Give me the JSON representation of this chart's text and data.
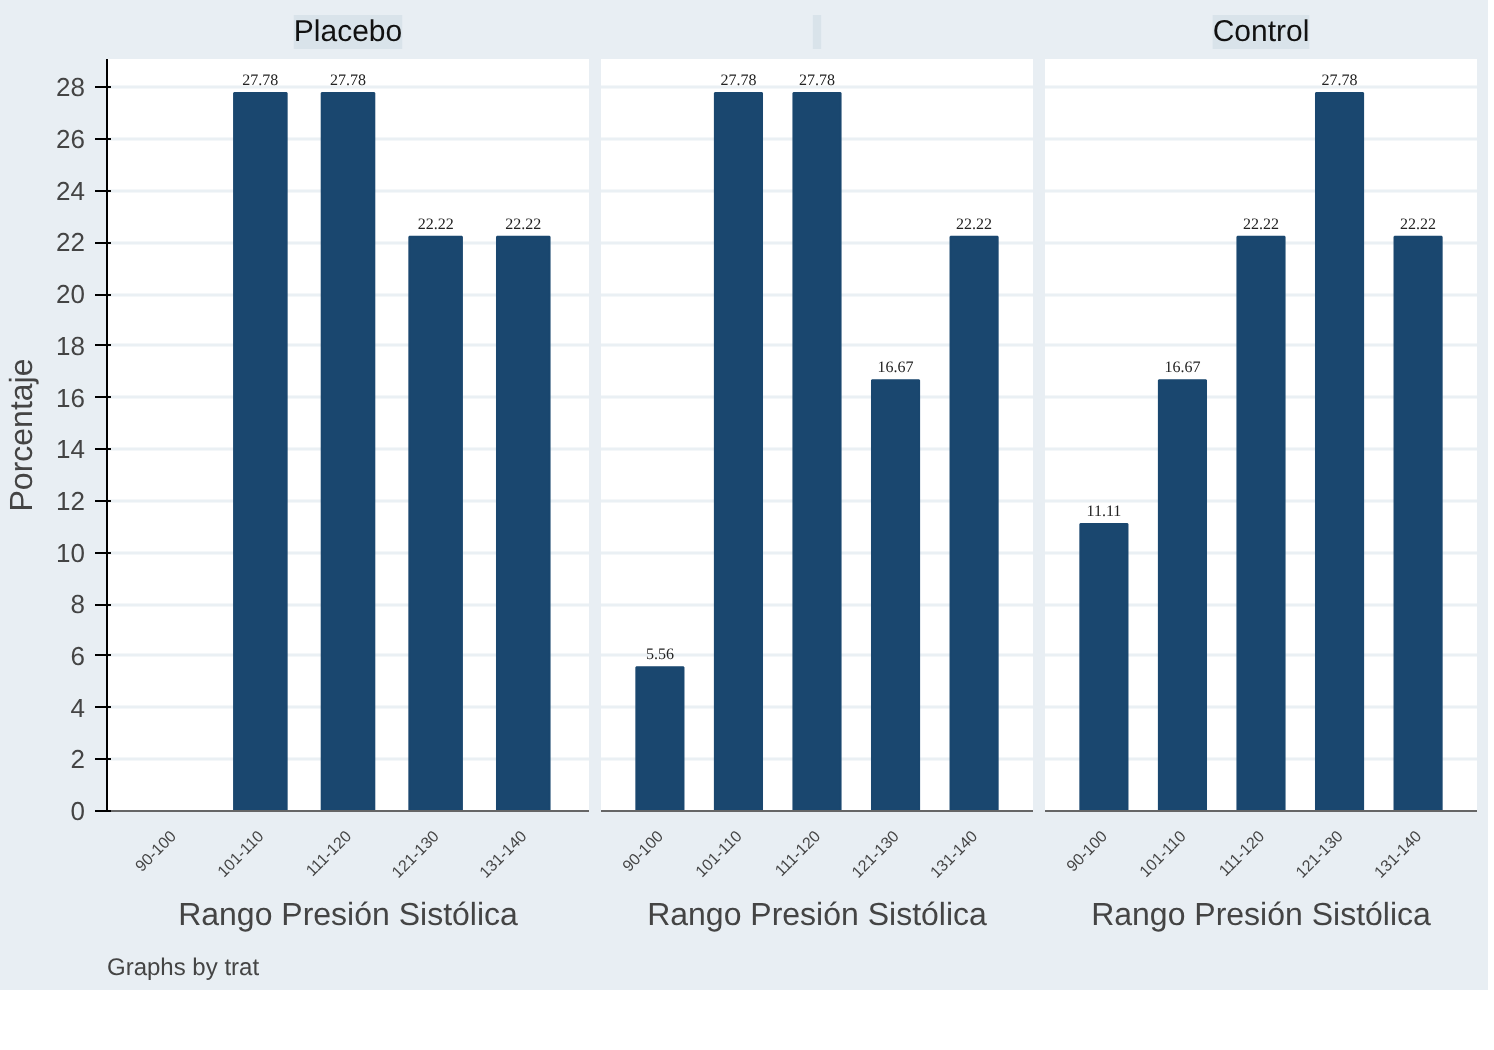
{
  "chart_data": [
    {
      "type": "bar",
      "title": "Placebo",
      "categories": [
        "90-100",
        "101-110",
        "111-120",
        "121-130",
        "131-140"
      ],
      "values": [
        null,
        27.78,
        27.78,
        22.22,
        22.22
      ],
      "color": "#1a476f",
      "xlabel": "Rango Presión Sistólica",
      "ylabel": "Porcentaje",
      "ylim": [
        0,
        29.1
      ],
      "yticks": [
        0,
        2,
        4,
        6,
        8,
        10,
        12,
        14,
        16,
        18,
        20,
        22,
        24,
        26,
        28
      ],
      "grid": "y",
      "data_labels": true,
      "annotations": [
        "Graphs by trat"
      ]
    },
    {
      "type": "bar",
      "title": null,
      "categories": [
        "90-100",
        "101-110",
        "111-120",
        "121-130",
        "131-140"
      ],
      "values": [
        5.56,
        27.78,
        27.78,
        16.67,
        22.22
      ],
      "color": "#1a476f",
      "xlabel": "Rango Presión Sistólica",
      "ylim": [
        0,
        29.1
      ],
      "yticks": [
        0,
        2,
        4,
        6,
        8,
        10,
        12,
        14,
        16,
        18,
        20,
        22,
        24,
        26,
        28
      ],
      "grid": "y",
      "data_labels": true,
      "tick_labels": "x"
    },
    {
      "type": "bar",
      "title": "Control",
      "categories": [
        "90-100",
        "101-110",
        "111-120",
        "121-130",
        "131-140"
      ],
      "values": [
        11.11,
        16.67,
        22.22,
        27.78,
        22.22
      ],
      "color": "#1a476f",
      "xlabel": "Rango Presión Sistólica",
      "ylim": [
        0,
        29.1
      ],
      "yticks": [
        0,
        2,
        4,
        6,
        8,
        10,
        12,
        14,
        16,
        18,
        20,
        22,
        24,
        26,
        28
      ],
      "grid": "y",
      "data_labels": true,
      "tick_labels": "x"
    }
  ]
}
